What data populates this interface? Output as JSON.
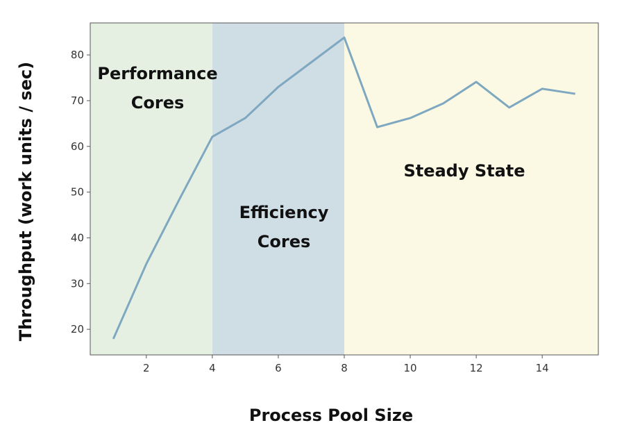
{
  "chart_data": {
    "type": "line",
    "title": "",
    "xlabel": "Process Pool Size",
    "ylabel": "Throughput (work units / sec)",
    "xlim": [
      0.3,
      15.7
    ],
    "ylim": [
      14.4,
      87.0
    ],
    "xticks": [
      2,
      4,
      6,
      8,
      10,
      12,
      14
    ],
    "yticks": [
      20,
      30,
      40,
      50,
      60,
      70,
      80
    ],
    "grid": false,
    "x": [
      1,
      2,
      3,
      4,
      5,
      6,
      7,
      8,
      9,
      10,
      11,
      12,
      13,
      14,
      15
    ],
    "series": [
      {
        "values": [
          17.9,
          34.3,
          48.4,
          62.1,
          66.2,
          73.0,
          78.4,
          83.8,
          64.2,
          66.2,
          69.4,
          74.1,
          68.5,
          72.6,
          71.5
        ],
        "color": "#7ea7c0"
      }
    ],
    "regions": [
      {
        "label_lines": [
          "Performance",
          "Cores"
        ],
        "x_start": 0.3,
        "x_end": 4,
        "color": "#e6f0e2"
      },
      {
        "label_lines": [
          "Efficiency",
          "Cores"
        ],
        "x_start": 4,
        "x_end": 8,
        "color": "#cfdde5"
      },
      {
        "label_lines": [
          "Steady State"
        ],
        "x_start": 8,
        "x_end": 15.7,
        "color": "#fbf9e3"
      }
    ]
  }
}
